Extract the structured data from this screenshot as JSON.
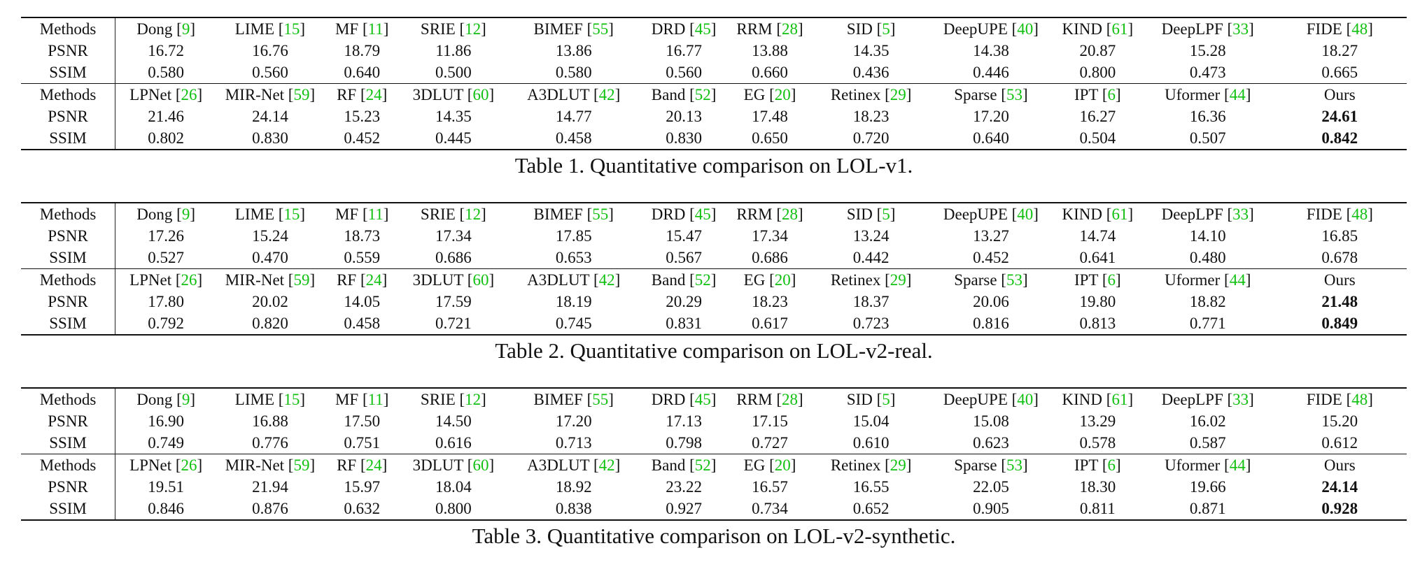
{
  "tables": [
    {
      "caption": "Table 1. Quantitative comparison on LOL-v1.",
      "halves": [
        {
          "label_methods": "Methods",
          "methods": [
            {
              "name": "Dong",
              "ref": "9"
            },
            {
              "name": "LIME",
              "ref": "15"
            },
            {
              "name": "MF",
              "ref": "11"
            },
            {
              "name": "SRIE",
              "ref": "12"
            },
            {
              "name": "BIMEF",
              "ref": "55"
            },
            {
              "name": "DRD",
              "ref": "45"
            },
            {
              "name": "RRM",
              "ref": "28"
            },
            {
              "name": "SID",
              "ref": "5"
            },
            {
              "name": "DeepUPE",
              "ref": "40"
            },
            {
              "name": "KIND",
              "ref": "61"
            },
            {
              "name": "DeepLPF",
              "ref": "33"
            },
            {
              "name": "FIDE",
              "ref": "48"
            }
          ],
          "rows": [
            {
              "label": "PSNR",
              "values": [
                "16.72",
                "16.76",
                "18.79",
                "11.86",
                "13.86",
                "16.77",
                "13.88",
                "14.35",
                "14.38",
                "20.87",
                "15.28",
                "18.27"
              ]
            },
            {
              "label": "SSIM",
              "values": [
                "0.580",
                "0.560",
                "0.640",
                "0.500",
                "0.580",
                "0.560",
                "0.660",
                "0.436",
                "0.446",
                "0.800",
                "0.473",
                "0.665"
              ]
            }
          ]
        },
        {
          "label_methods": "Methods",
          "methods": [
            {
              "name": "LPNet",
              "ref": "26"
            },
            {
              "name": "MIR-Net",
              "ref": "59"
            },
            {
              "name": "RF",
              "ref": "24"
            },
            {
              "name": "3DLUT",
              "ref": "60"
            },
            {
              "name": "A3DLUT",
              "ref": "42"
            },
            {
              "name": "Band",
              "ref": "52"
            },
            {
              "name": "EG",
              "ref": "20"
            },
            {
              "name": "Retinex",
              "ref": "29"
            },
            {
              "name": "Sparse",
              "ref": "53"
            },
            {
              "name": "IPT",
              "ref": "6"
            },
            {
              "name": "Uformer",
              "ref": "44"
            },
            {
              "name": "Ours",
              "ref": ""
            }
          ],
          "rows": [
            {
              "label": "PSNR",
              "values": [
                "21.46",
                "24.14",
                "15.23",
                "14.35",
                "14.77",
                "20.13",
                "17.48",
                "18.23",
                "17.20",
                "16.27",
                "16.36",
                "24.61"
              ]
            },
            {
              "label": "SSIM",
              "values": [
                "0.802",
                "0.830",
                "0.452",
                "0.445",
                "0.458",
                "0.830",
                "0.650",
                "0.720",
                "0.640",
                "0.504",
                "0.507",
                "0.842"
              ]
            }
          ]
        }
      ]
    },
    {
      "caption": "Table 2. Quantitative comparison on LOL-v2-real.",
      "halves": [
        {
          "label_methods": "Methods",
          "methods": [
            {
              "name": "Dong",
              "ref": "9"
            },
            {
              "name": "LIME",
              "ref": "15"
            },
            {
              "name": "MF",
              "ref": "11"
            },
            {
              "name": "SRIE",
              "ref": "12"
            },
            {
              "name": "BIMEF",
              "ref": "55"
            },
            {
              "name": "DRD",
              "ref": "45"
            },
            {
              "name": "RRM",
              "ref": "28"
            },
            {
              "name": "SID",
              "ref": "5"
            },
            {
              "name": "DeepUPE",
              "ref": "40"
            },
            {
              "name": "KIND",
              "ref": "61"
            },
            {
              "name": "DeepLPF",
              "ref": "33"
            },
            {
              "name": "FIDE",
              "ref": "48"
            }
          ],
          "rows": [
            {
              "label": "PSNR",
              "values": [
                "17.26",
                "15.24",
                "18.73",
                "17.34",
                "17.85",
                "15.47",
                "17.34",
                "13.24",
                "13.27",
                "14.74",
                "14.10",
                "16.85"
              ]
            },
            {
              "label": "SSIM",
              "values": [
                "0.527",
                "0.470",
                "0.559",
                "0.686",
                "0.653",
                "0.567",
                "0.686",
                "0.442",
                "0.452",
                "0.641",
                "0.480",
                "0.678"
              ]
            }
          ]
        },
        {
          "label_methods": "Methods",
          "methods": [
            {
              "name": "LPNet",
              "ref": "26"
            },
            {
              "name": "MIR-Net",
              "ref": "59"
            },
            {
              "name": "RF",
              "ref": "24"
            },
            {
              "name": "3DLUT",
              "ref": "60"
            },
            {
              "name": "A3DLUT",
              "ref": "42"
            },
            {
              "name": "Band",
              "ref": "52"
            },
            {
              "name": "EG",
              "ref": "20"
            },
            {
              "name": "Retinex",
              "ref": "29"
            },
            {
              "name": "Sparse",
              "ref": "53"
            },
            {
              "name": "IPT",
              "ref": "6"
            },
            {
              "name": "Uformer",
              "ref": "44"
            },
            {
              "name": "Ours",
              "ref": ""
            }
          ],
          "rows": [
            {
              "label": "PSNR",
              "values": [
                "17.80",
                "20.02",
                "14.05",
                "17.59",
                "18.19",
                "20.29",
                "18.23",
                "18.37",
                "20.06",
                "19.80",
                "18.82",
                "21.48"
              ]
            },
            {
              "label": "SSIM",
              "values": [
                "0.792",
                "0.820",
                "0.458",
                "0.721",
                "0.745",
                "0.831",
                "0.617",
                "0.723",
                "0.816",
                "0.813",
                "0.771",
                "0.849"
              ]
            }
          ]
        }
      ]
    },
    {
      "caption": "Table 3. Quantitative comparison on LOL-v2-synthetic.",
      "halves": [
        {
          "label_methods": "Methods",
          "methods": [
            {
              "name": "Dong",
              "ref": "9"
            },
            {
              "name": "LIME",
              "ref": "15"
            },
            {
              "name": "MF",
              "ref": "11"
            },
            {
              "name": "SRIE",
              "ref": "12"
            },
            {
              "name": "BIMEF",
              "ref": "55"
            },
            {
              "name": "DRD",
              "ref": "45"
            },
            {
              "name": "RRM",
              "ref": "28"
            },
            {
              "name": "SID",
              "ref": "5"
            },
            {
              "name": "DeepUPE",
              "ref": "40"
            },
            {
              "name": "KIND",
              "ref": "61"
            },
            {
              "name": "DeepLPF",
              "ref": "33"
            },
            {
              "name": "FIDE",
              "ref": "48"
            }
          ],
          "rows": [
            {
              "label": "PSNR",
              "values": [
                "16.90",
                "16.88",
                "17.50",
                "14.50",
                "17.20",
                "17.13",
                "17.15",
                "15.04",
                "15.08",
                "13.29",
                "16.02",
                "15.20"
              ]
            },
            {
              "label": "SSIM",
              "values": [
                "0.749",
                "0.776",
                "0.751",
                "0.616",
                "0.713",
                "0.798",
                "0.727",
                "0.610",
                "0.623",
                "0.578",
                "0.587",
                "0.612"
              ]
            }
          ]
        },
        {
          "label_methods": "Methods",
          "methods": [
            {
              "name": "LPNet",
              "ref": "26"
            },
            {
              "name": "MIR-Net",
              "ref": "59"
            },
            {
              "name": "RF",
              "ref": "24"
            },
            {
              "name": "3DLUT",
              "ref": "60"
            },
            {
              "name": "A3DLUT",
              "ref": "42"
            },
            {
              "name": "Band",
              "ref": "52"
            },
            {
              "name": "EG",
              "ref": "20"
            },
            {
              "name": "Retinex",
              "ref": "29"
            },
            {
              "name": "Sparse",
              "ref": "53"
            },
            {
              "name": "IPT",
              "ref": "6"
            },
            {
              "name": "Uformer",
              "ref": "44"
            },
            {
              "name": "Ours",
              "ref": ""
            }
          ],
          "rows": [
            {
              "label": "PSNR",
              "values": [
                "19.51",
                "21.94",
                "15.97",
                "18.04",
                "18.92",
                "23.22",
                "16.57",
                "16.55",
                "22.05",
                "18.30",
                "19.66",
                "24.14"
              ]
            },
            {
              "label": "SSIM",
              "values": [
                "0.846",
                "0.876",
                "0.632",
                "0.800",
                "0.838",
                "0.927",
                "0.734",
                "0.652",
                "0.905",
                "0.811",
                "0.871",
                "0.928"
              ]
            }
          ]
        }
      ]
    }
  ],
  "styles": {
    "cite_color": "#10c010",
    "best_column": "Ours"
  }
}
